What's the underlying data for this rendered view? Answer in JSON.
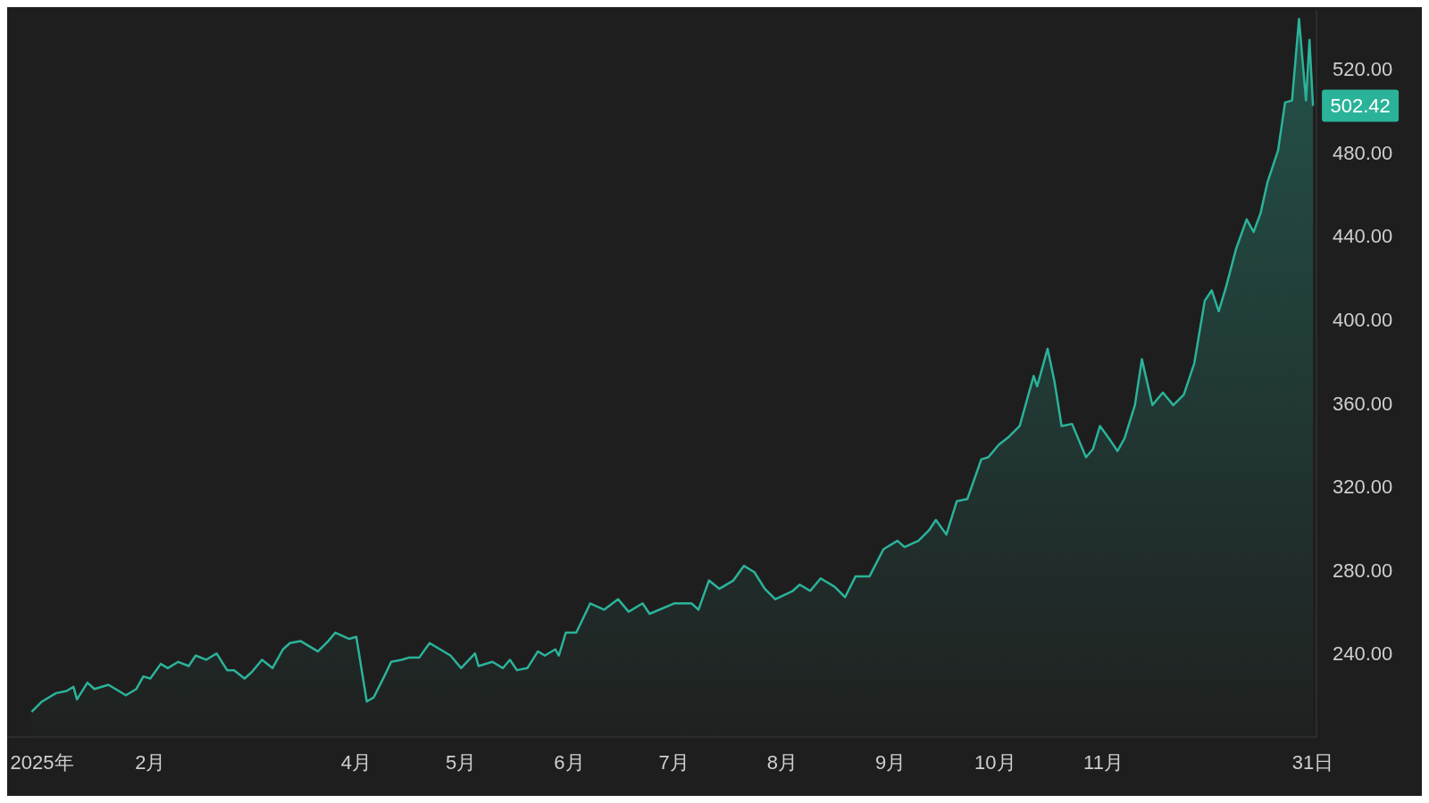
{
  "chart_data": {
    "type": "area",
    "x": [
      "2024-12-29",
      "2025-01-01",
      "2025-01-05",
      "2025-01-08",
      "2025-01-10",
      "2025-01-11",
      "2025-01-14",
      "2025-01-16",
      "2025-01-20",
      "2025-01-23",
      "2025-01-25",
      "2025-01-28",
      "2025-01-30",
      "2025-02-01",
      "2025-02-04",
      "2025-02-06",
      "2025-02-09",
      "2025-02-12",
      "2025-02-14",
      "2025-02-17",
      "2025-02-20",
      "2025-02-23",
      "2025-02-25",
      "2025-02-28",
      "2025-03-02",
      "2025-03-05",
      "2025-03-08",
      "2025-03-11",
      "2025-03-13",
      "2025-03-16",
      "2025-03-21",
      "2025-03-24",
      "2025-03-26",
      "2025-03-30",
      "2025-04-01",
      "2025-04-04",
      "2025-04-06",
      "2025-04-09",
      "2025-04-11",
      "2025-04-14",
      "2025-04-16",
      "2025-04-19",
      "2025-04-22",
      "2025-04-25",
      "2025-04-28",
      "2025-05-01",
      "2025-05-05",
      "2025-05-06",
      "2025-05-10",
      "2025-05-13",
      "2025-05-15",
      "2025-05-17",
      "2025-05-20",
      "2025-05-23",
      "2025-05-25",
      "2025-05-28",
      "2025-05-29",
      "2025-05-31",
      "2025-06-03",
      "2025-06-07",
      "2025-06-11",
      "2025-06-15",
      "2025-06-18",
      "2025-06-22",
      "2025-06-24",
      "2025-07-01",
      "2025-07-06",
      "2025-07-08",
      "2025-07-11",
      "2025-07-14",
      "2025-07-18",
      "2025-07-21",
      "2025-07-24",
      "2025-07-27",
      "2025-07-30",
      "2025-08-04",
      "2025-08-06",
      "2025-08-09",
      "2025-08-12",
      "2025-08-16",
      "2025-08-19",
      "2025-08-22",
      "2025-08-26",
      "2025-08-30",
      "2025-09-03",
      "2025-09-05",
      "2025-09-09",
      "2025-09-12",
      "2025-09-14",
      "2025-09-17",
      "2025-09-20",
      "2025-09-23",
      "2025-09-27",
      "2025-09-29",
      "2025-10-02",
      "2025-10-05",
      "2025-10-08",
      "2025-10-12",
      "2025-10-13",
      "2025-10-16",
      "2025-10-18",
      "2025-10-20",
      "2025-10-23",
      "2025-10-27",
      "2025-10-29",
      "2025-10-31",
      "2025-11-03",
      "2025-11-05",
      "2025-11-07",
      "2025-11-10",
      "2025-11-12",
      "2025-11-15",
      "2025-11-18",
      "2025-11-21",
      "2025-11-24",
      "2025-11-27",
      "2025-11-30",
      "2025-12-02",
      "2025-12-04",
      "2025-12-06",
      "2025-12-09",
      "2025-12-12",
      "2025-12-14",
      "2025-12-16",
      "2025-12-18",
      "2025-12-21",
      "2025-12-23",
      "2025-12-25",
      "2025-12-27",
      "2025-12-29",
      "2025-12-30",
      "2025-12-31"
    ],
    "series": [
      {
        "color": "#2bb39a",
        "values": [
          212,
          217,
          221,
          222,
          224,
          218,
          226,
          223,
          225,
          222,
          220,
          223,
          229,
          228,
          235,
          233,
          236,
          234,
          239,
          237,
          240,
          232,
          232,
          228,
          231,
          237,
          233,
          242,
          245,
          246,
          241,
          246,
          250,
          247,
          248,
          217,
          219,
          229,
          236,
          237,
          238,
          238,
          245,
          242,
          239,
          233,
          240,
          234,
          236,
          233,
          237,
          232,
          233,
          241,
          239,
          242,
          239,
          250,
          250,
          264,
          261,
          266,
          260,
          264,
          259,
          264,
          264,
          261,
          275,
          271,
          275,
          282,
          279,
          271,
          266,
          270,
          273,
          270,
          276,
          272,
          267,
          277,
          277,
          290,
          294,
          291,
          294,
          299,
          304,
          297,
          313,
          314,
          333,
          334,
          340,
          344,
          349,
          373,
          368,
          386,
          370,
          349,
          350,
          334,
          338,
          349,
          342,
          337,
          343,
          359,
          381,
          359,
          365,
          359,
          364,
          379,
          409,
          414,
          404,
          415,
          434,
          448,
          442,
          451,
          466,
          481,
          504,
          505,
          544,
          505,
          534,
          502.42
        ]
      }
    ],
    "xlim": [
      "2024-12-22",
      "2026-01-01"
    ],
    "xticks": [
      {
        "value": "2025-01-01",
        "label": "2025年"
      },
      {
        "value": "2025-02-01",
        "label": "2月"
      },
      {
        "value": "2025-04-01",
        "label": "4月"
      },
      {
        "value": "2025-05-01",
        "label": "5月"
      },
      {
        "value": "2025-06-01",
        "label": "6月"
      },
      {
        "value": "2025-07-01",
        "label": "7月"
      },
      {
        "value": "2025-08-01",
        "label": "8月"
      },
      {
        "value": "2025-09-01",
        "label": "9月"
      },
      {
        "value": "2025-10-01",
        "label": "10月"
      },
      {
        "value": "2025-11-01",
        "label": "11月"
      },
      {
        "value": "2025-12-31",
        "label": "31日"
      }
    ],
    "ylim": [
      200,
      548
    ],
    "yticks": [
      {
        "value": 240,
        "label": "240.00"
      },
      {
        "value": 280,
        "label": "280.00"
      },
      {
        "value": 320,
        "label": "320.00"
      },
      {
        "value": 360,
        "label": "360.00"
      },
      {
        "value": 400,
        "label": "400.00"
      },
      {
        "value": 440,
        "label": "440.00"
      },
      {
        "value": 480,
        "label": "480.00"
      },
      {
        "value": 520,
        "label": "520.00"
      }
    ],
    "annotations": [
      {
        "text": "502.42",
        "x": "2025-12-31",
        "y": 502.42
      }
    ],
    "grid": false,
    "legend": false,
    "marker": "none",
    "line_style": "solid"
  }
}
